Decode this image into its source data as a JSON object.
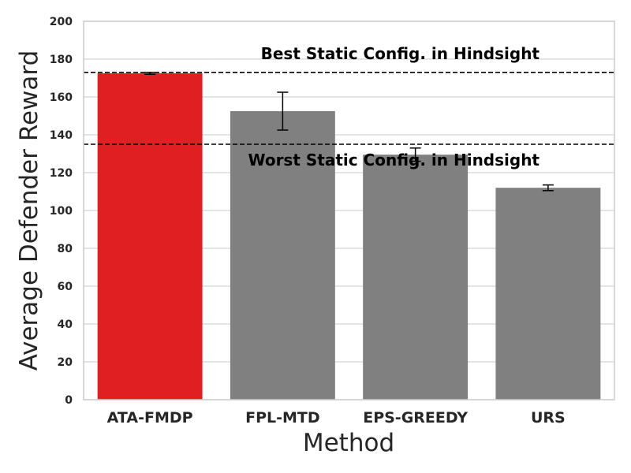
{
  "chart_data": {
    "type": "bar",
    "xlabel": "Method",
    "ylabel": "Average Defender Reward",
    "ylim": [
      0,
      200
    ],
    "yticks": [
      0,
      20,
      40,
      60,
      80,
      100,
      120,
      140,
      160,
      180,
      200
    ],
    "grid": "horizontal",
    "categories": [
      "ATA-FMDP",
      "FPL-MTD",
      "EPS-GREEDY",
      "URS"
    ],
    "values": [
      172.5,
      152.5,
      129.5,
      112
    ],
    "error": [
      0.5,
      10,
      3.5,
      1.5
    ],
    "colors": [
      "#e02020",
      "#808080",
      "#808080",
      "#808080"
    ],
    "reference_lines": [
      {
        "label": "Best Static Config. in Hindsight",
        "value": 173,
        "style": "dashed"
      },
      {
        "label": "Worst Static Config. in Hindsight",
        "value": 135,
        "style": "dashed"
      }
    ]
  }
}
